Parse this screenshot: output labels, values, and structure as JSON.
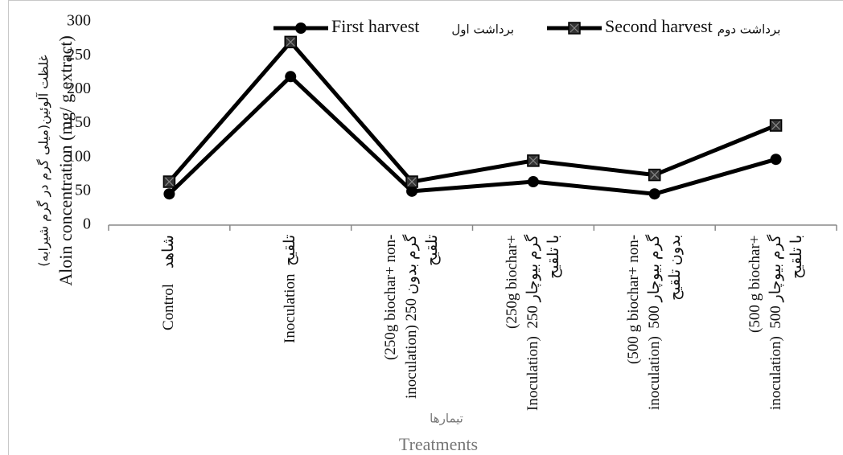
{
  "chart_data": {
    "type": "line",
    "y_label": "Aloin concentration (mg/ g extract)",
    "y_label_fa": "غلظت آلوئین(میلی گرم در گرم شیرابه)",
    "x_label": "Treatments",
    "x_label_fa": "تیمارها",
    "categories": [
      "Control    شاهد",
      "Inoculation  تلقیح",
      "(250g biochar+ non-\ninoculation) 250 گرم بدون\nتلقیح",
      "(250g biochar+\nInoculation)  250 گرم بیوچار\nبا تلقیح",
      "(500 g biochar+ non-\ninoculation)  500 گرم بیوچار\nبدون تلقیح",
      "(500 g biochar+\ninoculation)  500 گرم بیوچار\nبا تلقیح"
    ],
    "series": [
      {
        "name": "First harvest",
        "name_fa": "برداشت اول",
        "color": "#000000",
        "marker": "circle",
        "values": [
          46,
          219,
          50,
          64,
          46,
          97
        ]
      },
      {
        "name": "Second harvest",
        "name_fa": "برداشت دوم",
        "color": "#000000",
        "marker": "square",
        "values": [
          64,
          270,
          64,
          95,
          74,
          147
        ]
      }
    ],
    "ylim": [
      0,
      300
    ],
    "yticks": [
      0,
      50,
      100,
      150,
      200,
      250,
      300
    ],
    "grid": false,
    "legend": "top"
  }
}
